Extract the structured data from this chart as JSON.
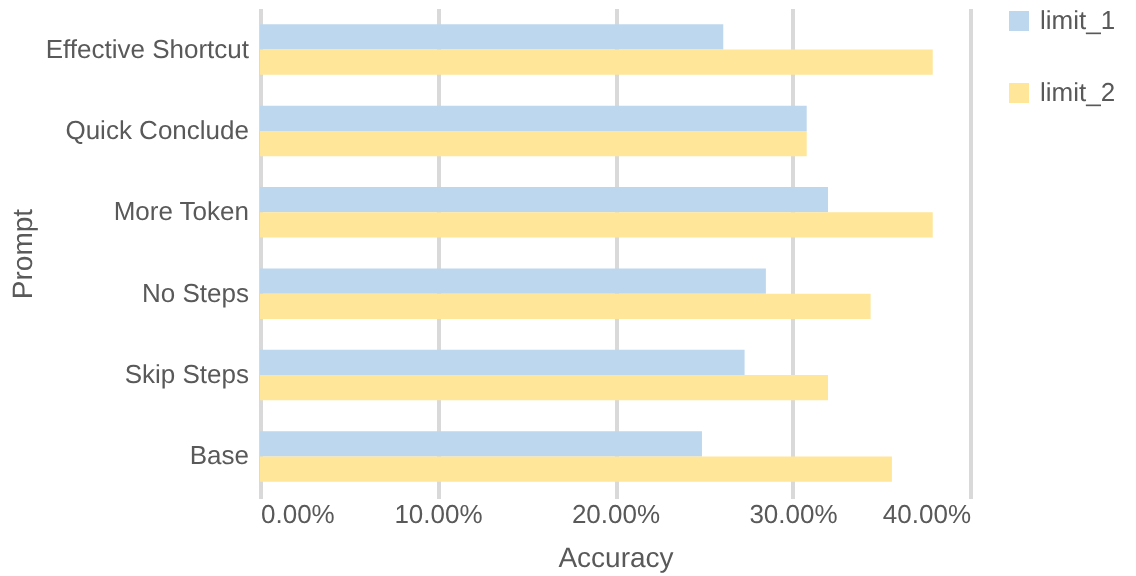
{
  "chart_data": {
    "type": "bar",
    "orientation": "horizontal",
    "xlabel": "Accuracy",
    "ylabel": "Prompt",
    "categories": [
      "Effective Shortcut",
      "Quick Conclude",
      "More Token",
      "No Steps",
      "Skip Steps",
      "Base"
    ],
    "series": [
      {
        "name": "limit_1",
        "color": "#bdd7ee",
        "values": [
          26.1,
          30.8,
          32.0,
          28.5,
          27.3,
          24.9
        ]
      },
      {
        "name": "limit_2",
        "color": "#ffe699",
        "values": [
          37.9,
          30.8,
          37.9,
          34.4,
          32.0,
          35.6
        ]
      }
    ],
    "xlim": [
      0,
      40
    ],
    "xticks": [
      {
        "value": 0,
        "label": "0.00%"
      },
      {
        "value": 10,
        "label": "10.00%"
      },
      {
        "value": 20,
        "label": "20.00%"
      },
      {
        "value": 30,
        "label": "30.00%"
      },
      {
        "value": 40,
        "label": "40.00%"
      }
    ],
    "grid": "x",
    "legend": "right"
  }
}
